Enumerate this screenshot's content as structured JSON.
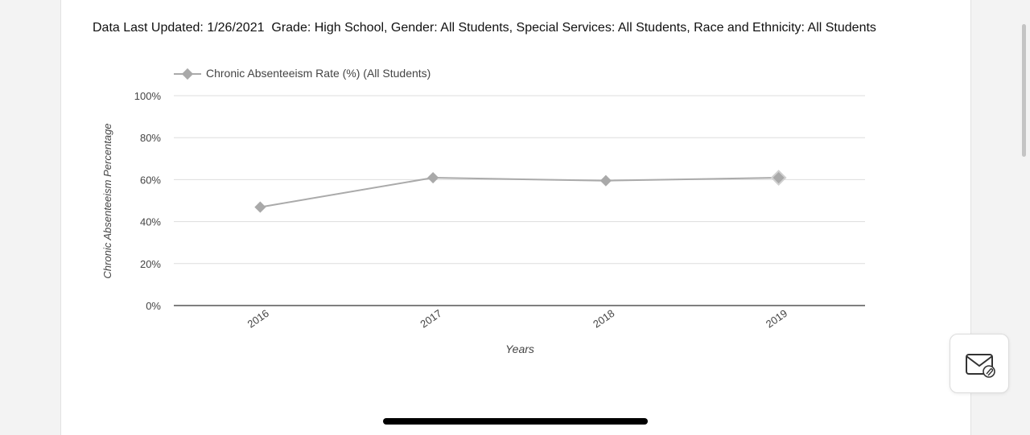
{
  "header": {
    "meta_text": "Data Last Updated: 1/26/2021  Grade: High School, Gender: All Students, Special Services: All Students, Race and Ethnicity: All Students"
  },
  "colors": {
    "series": "#aaaaaa",
    "marker": "#a9a9a9",
    "grid": "#dddddd",
    "axis": "#555555",
    "text": "#444444"
  },
  "chart_data": {
    "type": "line",
    "title": "",
    "xlabel": "Years",
    "ylabel": "Chronic Absenteeism Percentage",
    "categories": [
      "2016",
      "2017",
      "2018",
      "2019"
    ],
    "series": [
      {
        "name": "Chronic Absenteeism Rate (%) (All Students)",
        "values": [
          46.9,
          60.9,
          59.5,
          60.9
        ],
        "marker": "diamond"
      }
    ],
    "ylim": [
      0,
      100
    ],
    "yticks": [
      "0%",
      "20%",
      "40%",
      "60%",
      "80%",
      "100%"
    ],
    "grid": true,
    "legend_position": "top-left"
  },
  "widgets": {
    "mail_icon": "mail-attachment-icon"
  }
}
